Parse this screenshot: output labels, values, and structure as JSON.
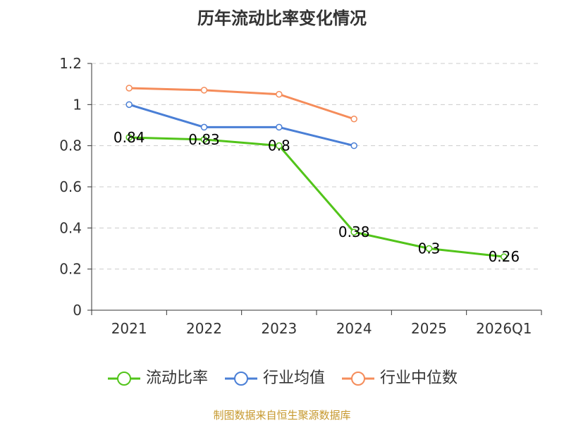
{
  "chart_data": {
    "type": "line",
    "title": "历年流动比率变化情况",
    "categories": [
      "2021",
      "2022",
      "2023",
      "2024",
      "2025",
      "2026Q1"
    ],
    "ylim": [
      0,
      1.2
    ],
    "yticks": [
      "0",
      "0.2",
      "0.4",
      "0.6",
      "0.8",
      "1",
      "1.2"
    ],
    "grid": true,
    "legend_position": "bottom",
    "series": [
      {
        "name": "流动比率",
        "color": "#52c41a",
        "values": [
          0.84,
          0.83,
          0.8,
          0.38,
          0.3,
          0.26
        ],
        "labels": [
          "0.84",
          "0.83",
          "0.8",
          "0.38",
          "0.3",
          "0.26"
        ]
      },
      {
        "name": "行业均值",
        "color": "#4a7fd6",
        "values": [
          1.0,
          0.89,
          0.89,
          0.8,
          null,
          null
        ]
      },
      {
        "name": "行业中位数",
        "color": "#f58c5a",
        "values": [
          1.08,
          1.07,
          1.05,
          0.93,
          null,
          null
        ]
      }
    ]
  },
  "footer": {
    "source": "制图数据来自恒生聚源数据库"
  }
}
